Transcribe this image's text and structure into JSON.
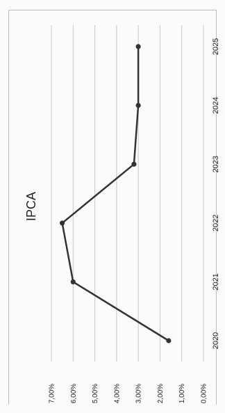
{
  "chart_data": {
    "type": "line",
    "title": "IPCA",
    "categories": [
      "2020",
      "2021",
      "2022",
      "2023",
      "2024",
      "2025"
    ],
    "series": [
      {
        "values": [
          1.6,
          6.0,
          6.5,
          3.2,
          3.0,
          3.0
        ]
      }
    ],
    "yticks": [
      "0,00%",
      "1,00%",
      "2,00%",
      "3,00%",
      "4,00%",
      "5,00%",
      "6,00%",
      "7,00%"
    ],
    "ylim": [
      0,
      7
    ],
    "xlabel": "",
    "ylabel": "",
    "grid": true,
    "legend": "none",
    "orientation": "rotated-90-clockwise",
    "colors": {
      "line": "#333333",
      "grid": "#c8c8c8",
      "text": "#222222"
    }
  }
}
